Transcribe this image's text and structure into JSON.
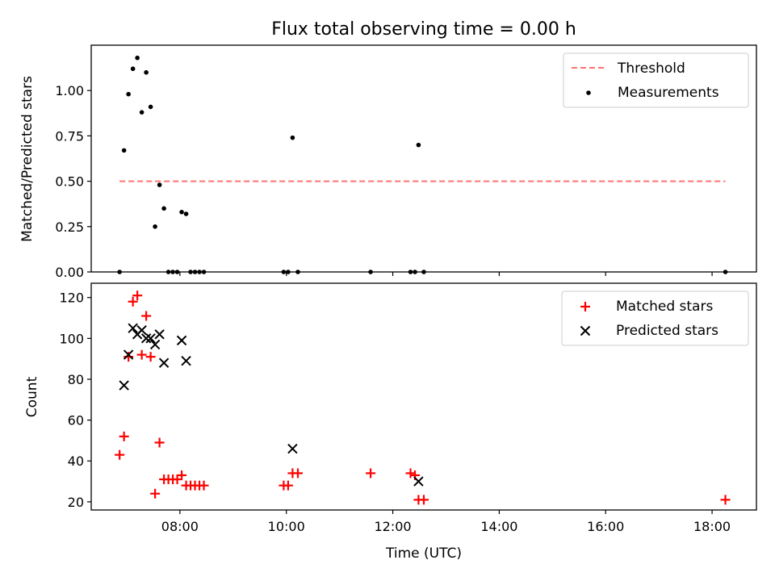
{
  "figure": {
    "title": "Flux total observing time = 0.00 h"
  },
  "chart_data": [
    {
      "type": "scatter",
      "ylabel": "Matched/Predicted stars",
      "xlim": [
        "06:20",
        "18:50"
      ],
      "ylim": [
        0,
        1.25
      ],
      "yticks": [
        0.0,
        0.25,
        0.5,
        0.75,
        1.0
      ],
      "ytick_labels": [
        "0.00",
        "0.25",
        "0.50",
        "0.75",
        "1.00"
      ],
      "grid": false,
      "legend": "top-right",
      "threshold": {
        "name": "Threshold",
        "color": "#ff7373",
        "y": 0.5,
        "x": [
          "06:52",
          "18:15"
        ]
      },
      "series": [
        {
          "name": "Measurements",
          "marker": "dot",
          "color": "#000000",
          "points": [
            [
              "06:52",
              0.0
            ],
            [
              "06:57",
              0.67
            ],
            [
              "07:02",
              0.98
            ],
            [
              "07:07",
              1.12
            ],
            [
              "07:12",
              1.18
            ],
            [
              "07:17",
              0.88
            ],
            [
              "07:22",
              1.1
            ],
            [
              "07:27",
              0.91
            ],
            [
              "07:32",
              0.25
            ],
            [
              "07:37",
              0.48
            ],
            [
              "07:42",
              0.35
            ],
            [
              "07:47",
              0.0
            ],
            [
              "07:52",
              0.0
            ],
            [
              "07:57",
              0.0
            ],
            [
              "08:02",
              0.33
            ],
            [
              "08:07",
              0.32
            ],
            [
              "08:12",
              0.0
            ],
            [
              "08:17",
              0.0
            ],
            [
              "08:22",
              0.0
            ],
            [
              "08:27",
              0.0
            ],
            [
              "09:57",
              0.0
            ],
            [
              "10:02",
              0.0
            ],
            [
              "10:07",
              0.74
            ],
            [
              "10:13",
              0.0
            ],
            [
              "11:35",
              0.0
            ],
            [
              "12:20",
              0.0
            ],
            [
              "12:25",
              0.0
            ],
            [
              "12:29",
              0.7
            ],
            [
              "12:35",
              0.0
            ],
            [
              "18:15",
              0.0
            ]
          ]
        }
      ]
    },
    {
      "type": "scatter",
      "xlabel": "Time (UTC)",
      "ylabel": "Count",
      "xlim": [
        "06:20",
        "18:50"
      ],
      "ylim": [
        16,
        127
      ],
      "xticks": [
        "08:00",
        "10:00",
        "12:00",
        "14:00",
        "16:00",
        "18:00"
      ],
      "yticks": [
        20,
        40,
        60,
        80,
        100,
        120
      ],
      "grid": false,
      "legend": "top-right",
      "series": [
        {
          "name": "Matched stars",
          "marker": "plus",
          "color": "#ff0000",
          "points": [
            [
              "06:52",
              43
            ],
            [
              "06:57",
              52
            ],
            [
              "07:02",
              91
            ],
            [
              "07:07",
              118
            ],
            [
              "07:12",
              121
            ],
            [
              "07:17",
              92
            ],
            [
              "07:22",
              111
            ],
            [
              "07:27",
              91
            ],
            [
              "07:32",
              24
            ],
            [
              "07:37",
              49
            ],
            [
              "07:42",
              31
            ],
            [
              "07:47",
              31
            ],
            [
              "07:52",
              31
            ],
            [
              "07:57",
              31
            ],
            [
              "08:02",
              33
            ],
            [
              "08:07",
              28
            ],
            [
              "08:12",
              28
            ],
            [
              "08:17",
              28
            ],
            [
              "08:22",
              28
            ],
            [
              "08:27",
              28
            ],
            [
              "09:57",
              28
            ],
            [
              "10:02",
              28
            ],
            [
              "10:07",
              34
            ],
            [
              "10:13",
              34
            ],
            [
              "11:35",
              34
            ],
            [
              "12:20",
              34
            ],
            [
              "12:25",
              33
            ],
            [
              "12:29",
              21
            ],
            [
              "12:35",
              21
            ],
            [
              "18:15",
              21
            ]
          ]
        },
        {
          "name": "Predicted stars",
          "marker": "x",
          "color": "#000000",
          "points": [
            [
              "06:57",
              77
            ],
            [
              "07:02",
              92
            ],
            [
              "07:07",
              105
            ],
            [
              "07:12",
              102
            ],
            [
              "07:17",
              104
            ],
            [
              "07:22",
              100
            ],
            [
              "07:27",
              100
            ],
            [
              "07:32",
              97
            ],
            [
              "07:37",
              102
            ],
            [
              "07:42",
              88
            ],
            [
              "08:02",
              99
            ],
            [
              "08:07",
              89
            ],
            [
              "10:07",
              46
            ],
            [
              "12:29",
              30
            ]
          ]
        }
      ]
    }
  ]
}
